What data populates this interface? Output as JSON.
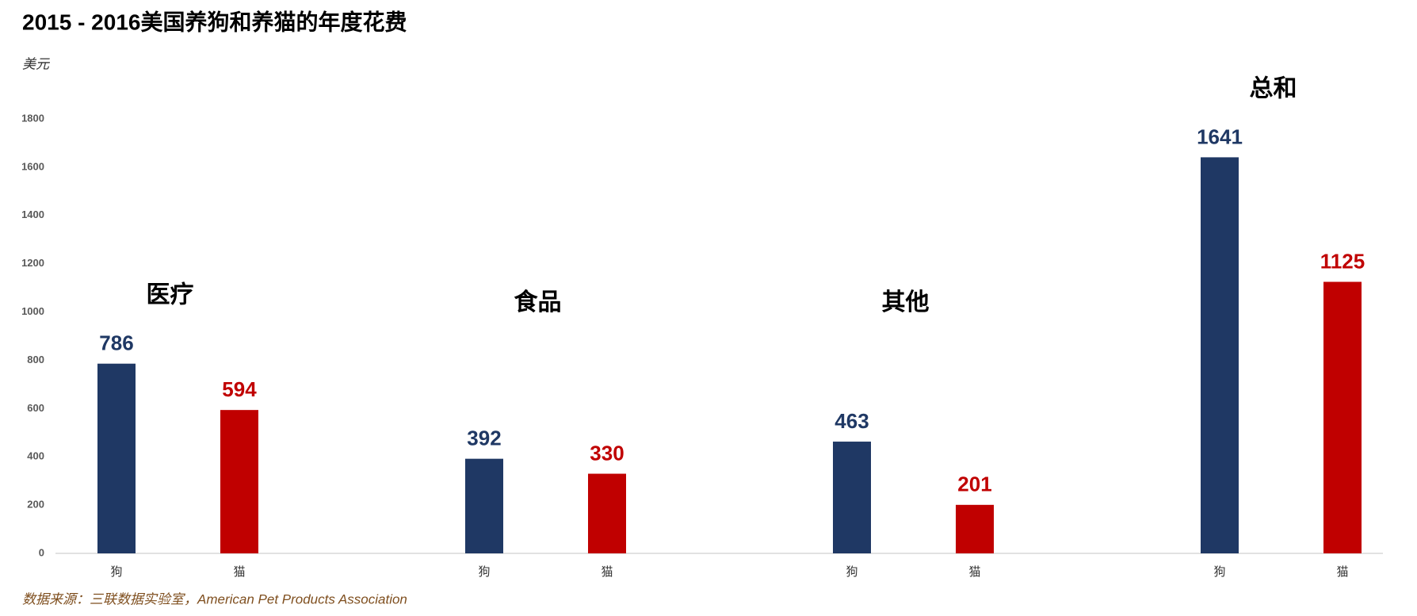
{
  "chart_data": {
    "type": "bar",
    "title": "2015 - 2016美国养狗和养猫的年度花费",
    "y_label": "美元",
    "groups": [
      "医疗",
      "食品",
      "其他",
      "总和"
    ],
    "series": [
      {
        "name": "狗",
        "color": "#1f3864",
        "values": [
          786,
          392,
          463,
          1641
        ]
      },
      {
        "name": "猫",
        "color": "#c00000",
        "values": [
          594,
          330,
          201,
          1125
        ]
      }
    ],
    "ylim": [
      0,
      1800
    ],
    "yticks": [
      0,
      200,
      400,
      600,
      800,
      1000,
      1200,
      1400,
      1600,
      1800
    ],
    "source": "数据来源：三联数据实验室，American Pet Products Association"
  }
}
